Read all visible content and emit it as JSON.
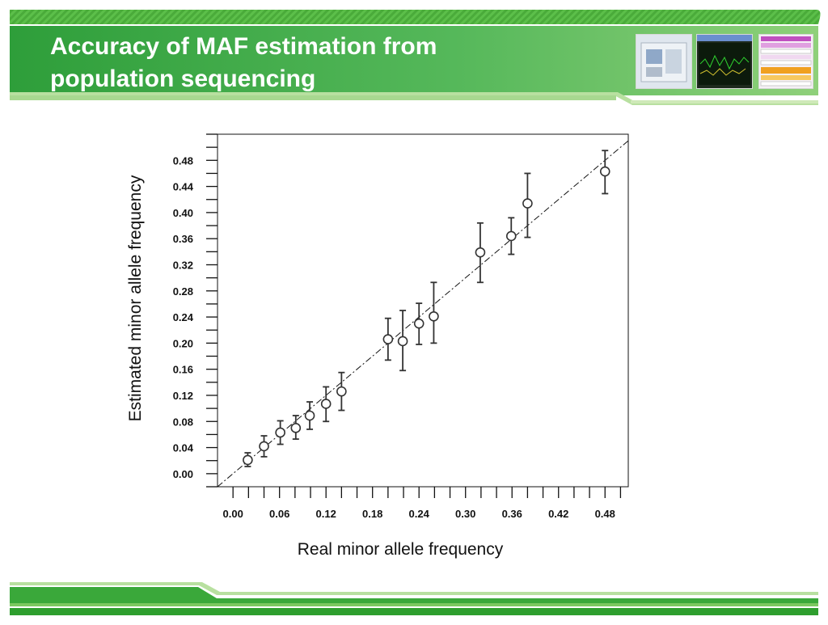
{
  "slide": {
    "title_line1": "Accuracy of MAF estimation from",
    "title_line2": "population sequencing"
  },
  "header_images": [
    {
      "name": "sequencer-instrument-thumbnail"
    },
    {
      "name": "trace-viewer-thumbnail"
    },
    {
      "name": "spreadsheet-thumbnail"
    }
  ],
  "colors": {
    "banner_dark": "#2e9e3a",
    "banner_light": "#8fd07a",
    "point": "#333333",
    "reference_line": "#111111"
  },
  "chart_data": {
    "type": "scatter",
    "title": "",
    "xlabel": "Real minor allele frequency",
    "ylabel": "Estimated minor allele frequency",
    "xlim": [
      -0.02,
      0.51
    ],
    "ylim": [
      -0.02,
      0.52
    ],
    "x_ticks": [
      "0.00",
      "0.06",
      "0.12",
      "0.18",
      "0.24",
      "0.30",
      "0.36",
      "0.42",
      "0.48"
    ],
    "y_ticks": [
      "0.00",
      "0.04",
      "0.08",
      "0.12",
      "0.16",
      "0.20",
      "0.24",
      "0.28",
      "0.32",
      "0.36",
      "0.40",
      "0.44",
      "0.48"
    ],
    "reference_line": {
      "style": "dash-dot",
      "slope": 1,
      "intercept": 0
    },
    "grid": false,
    "points": [
      {
        "x": 0.019,
        "y": 0.021,
        "y_low": 0.011,
        "y_high": 0.032
      },
      {
        "x": 0.04,
        "y": 0.042,
        "y_low": 0.026,
        "y_high": 0.058
      },
      {
        "x": 0.061,
        "y": 0.063,
        "y_low": 0.045,
        "y_high": 0.081
      },
      {
        "x": 0.081,
        "y": 0.07,
        "y_low": 0.053,
        "y_high": 0.089
      },
      {
        "x": 0.099,
        "y": 0.089,
        "y_low": 0.068,
        "y_high": 0.11
      },
      {
        "x": 0.12,
        "y": 0.107,
        "y_low": 0.08,
        "y_high": 0.133
      },
      {
        "x": 0.14,
        "y": 0.126,
        "y_low": 0.097,
        "y_high": 0.155
      },
      {
        "x": 0.2,
        "y": 0.206,
        "y_low": 0.174,
        "y_high": 0.238
      },
      {
        "x": 0.219,
        "y": 0.203,
        "y_low": 0.158,
        "y_high": 0.25
      },
      {
        "x": 0.24,
        "y": 0.23,
        "y_low": 0.198,
        "y_high": 0.261
      },
      {
        "x": 0.259,
        "y": 0.241,
        "y_low": 0.2,
        "y_high": 0.293
      },
      {
        "x": 0.319,
        "y": 0.339,
        "y_low": 0.293,
        "y_high": 0.384
      },
      {
        "x": 0.359,
        "y": 0.364,
        "y_low": 0.336,
        "y_high": 0.392
      },
      {
        "x": 0.38,
        "y": 0.414,
        "y_low": 0.362,
        "y_high": 0.46
      },
      {
        "x": 0.48,
        "y": 0.463,
        "y_low": 0.429,
        "y_high": 0.495
      }
    ]
  }
}
